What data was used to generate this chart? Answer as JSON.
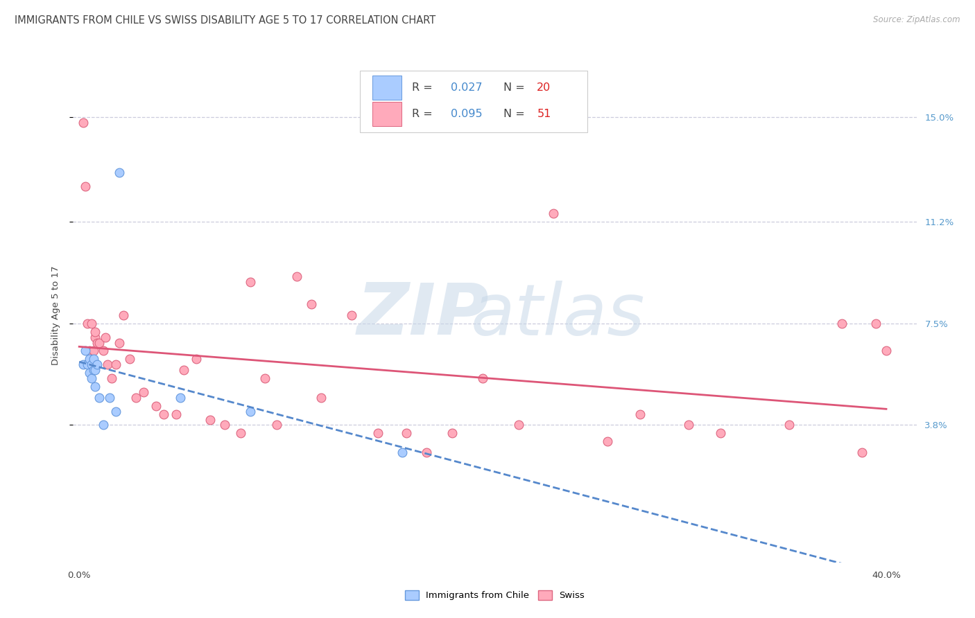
{
  "title": "IMMIGRANTS FROM CHILE VS SWISS DISABILITY AGE 5 TO 17 CORRELATION CHART",
  "source": "Source: ZipAtlas.com",
  "ylabel": "Disability Age 5 to 17",
  "ytick_values": [
    0.038,
    0.075,
    0.112,
    0.15
  ],
  "ytick_labels": [
    "3.8%",
    "7.5%",
    "11.2%",
    "15.0%"
  ],
  "xlim": [
    -0.003,
    0.415
  ],
  "ylim": [
    -0.012,
    0.168
  ],
  "chile_x": [
    0.002,
    0.003,
    0.004,
    0.005,
    0.005,
    0.006,
    0.006,
    0.007,
    0.007,
    0.008,
    0.008,
    0.009,
    0.01,
    0.012,
    0.015,
    0.018,
    0.02,
    0.05,
    0.085,
    0.16
  ],
  "chile_y": [
    0.06,
    0.065,
    0.06,
    0.057,
    0.062,
    0.055,
    0.06,
    0.058,
    0.062,
    0.052,
    0.058,
    0.06,
    0.048,
    0.038,
    0.048,
    0.043,
    0.13,
    0.048,
    0.043,
    0.028
  ],
  "swiss_x": [
    0.002,
    0.003,
    0.004,
    0.005,
    0.006,
    0.007,
    0.008,
    0.008,
    0.009,
    0.01,
    0.012,
    0.013,
    0.014,
    0.016,
    0.018,
    0.02,
    0.022,
    0.025,
    0.028,
    0.032,
    0.038,
    0.042,
    0.048,
    0.052,
    0.058,
    0.065,
    0.072,
    0.08,
    0.085,
    0.092,
    0.098,
    0.108,
    0.115,
    0.12,
    0.135,
    0.148,
    0.162,
    0.172,
    0.185,
    0.2,
    0.218,
    0.235,
    0.262,
    0.278,
    0.302,
    0.318,
    0.352,
    0.378,
    0.388,
    0.395,
    0.4
  ],
  "swiss_y": [
    0.148,
    0.125,
    0.075,
    0.065,
    0.075,
    0.065,
    0.07,
    0.072,
    0.068,
    0.068,
    0.065,
    0.07,
    0.06,
    0.055,
    0.06,
    0.068,
    0.078,
    0.062,
    0.048,
    0.05,
    0.045,
    0.042,
    0.042,
    0.058,
    0.062,
    0.04,
    0.038,
    0.035,
    0.09,
    0.055,
    0.038,
    0.092,
    0.082,
    0.048,
    0.078,
    0.035,
    0.035,
    0.028,
    0.035,
    0.055,
    0.038,
    0.115,
    0.032,
    0.042,
    0.038,
    0.035,
    0.038,
    0.075,
    0.028,
    0.075,
    0.065
  ],
  "chile_color": "#aaccff",
  "chile_edge_color": "#6699dd",
  "swiss_color": "#ffaabb",
  "swiss_edge_color": "#dd6680",
  "chile_line_color": "#5588cc",
  "swiss_line_color": "#dd5577",
  "marker_size": 85,
  "background_color": "#ffffff",
  "grid_color": "#ccccdd",
  "title_fontsize": 10.5,
  "axis_fontsize": 9.5,
  "tick_color": "#5599cc",
  "text_color": "#444444",
  "r_color": "#4488cc",
  "n_color": "#dd2222",
  "legend_fontsize": 11.5
}
